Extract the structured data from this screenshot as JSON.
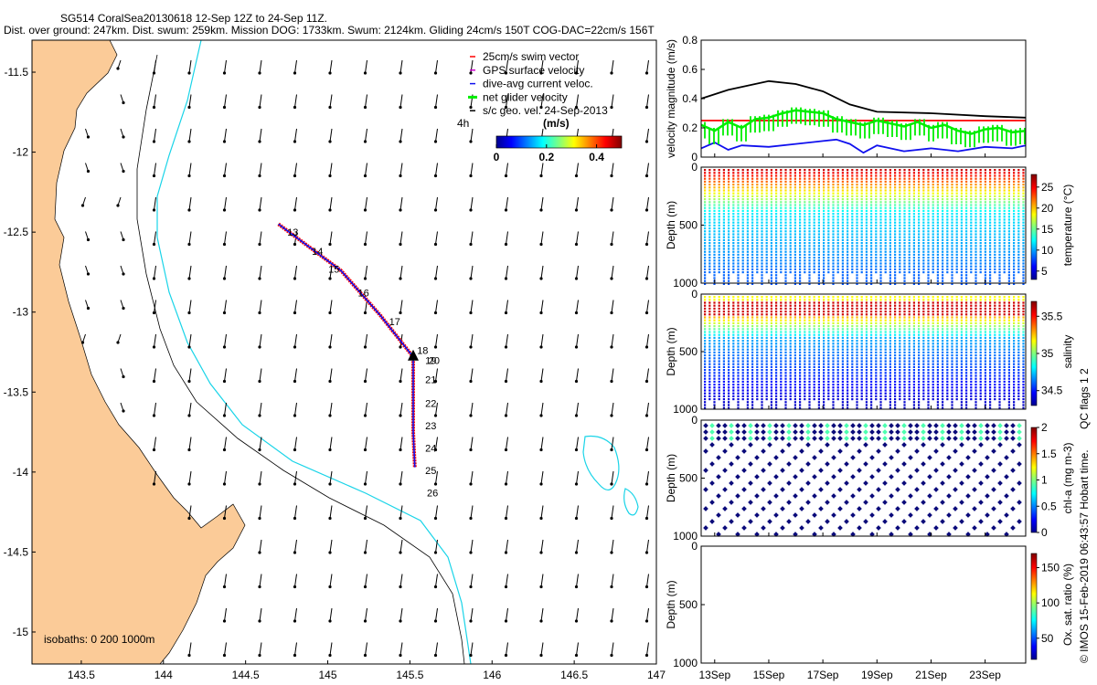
{
  "header": {
    "title_line1": "SG514 CoralSea20130618 12-Sep 12Z to 24-Sep 11Z.",
    "title_line2": "Dist. over ground: 247km. Dist. swum: 259km. Mission DOG: 1733km. Swum: 2124km. Gliding 24cm/s 150T COG-DAC=22cm/s 156T"
  },
  "colors": {
    "land": "#fbcb98",
    "track": "#1010ee",
    "swim": "#ff0000",
    "gps": "#cc00cc",
    "net": "#00ee00",
    "cyan": "#19d4e8",
    "dots": "#0a0a7a"
  },
  "map": {
    "x_ticks": [
      "143.5",
      "144",
      "144.5",
      "145",
      "145.5",
      "146",
      "146.5",
      "147"
    ],
    "y_ticks": [
      "-11.5",
      "-12",
      "-12.5",
      "-13",
      "-13.5",
      "-14",
      "-14.5",
      "-15"
    ],
    "xlim": [
      143.2,
      147.0
    ],
    "ylim": [
      -15.2,
      -11.3
    ],
    "legend": {
      "items": [
        "25cm/s swim vector",
        "GPS surface velocity",
        "dive-avg current veloc.",
        "net glider velocity",
        "s/c geo. vel. 24-Sep-2013"
      ],
      "item_colors": [
        "#ff0000",
        "#cc00cc",
        "#1010ee",
        "#00ee00",
        "#000000"
      ],
      "time_label": "4h"
    },
    "colorbar": {
      "title": "(m/s)",
      "ticks": [
        "0",
        "0.2",
        "0.4"
      ],
      "range": [
        0,
        0.5
      ]
    },
    "isobaths_label": "isobaths: 0   200  1000m",
    "track": [
      [
        144.7,
        -12.45
      ],
      [
        145.08,
        -12.74
      ],
      [
        145.32,
        -13.02
      ],
      [
        145.52,
        -13.28
      ],
      [
        145.52,
        -13.5
      ],
      [
        145.52,
        -13.75
      ],
      [
        145.53,
        -13.97
      ]
    ],
    "day_labels": [
      {
        "text": "13",
        "lon": 144.72,
        "lat": -12.5
      },
      {
        "text": "14",
        "lon": 144.87,
        "lat": -12.62
      },
      {
        "text": "15",
        "lon": 144.97,
        "lat": -12.73
      },
      {
        "text": "16",
        "lon": 145.15,
        "lat": -12.88
      },
      {
        "text": "17",
        "lon": 145.34,
        "lat": -13.06
      },
      {
        "text": "18",
        "lon": 145.51,
        "lat": -13.24
      },
      {
        "text": "19",
        "lon": 145.56,
        "lat": -13.3
      },
      {
        "text": "20",
        "lon": 145.58,
        "lat": -13.3
      },
      {
        "text": "21",
        "lon": 145.56,
        "lat": -13.42
      },
      {
        "text": "22",
        "lon": 145.56,
        "lat": -13.57
      },
      {
        "text": "23",
        "lon": 145.56,
        "lat": -13.71
      },
      {
        "text": "24",
        "lon": 145.56,
        "lat": -13.85
      },
      {
        "text": "25",
        "lon": 145.56,
        "lat": -13.99
      },
      {
        "text": "26",
        "lon": 145.57,
        "lat": -14.13
      }
    ]
  },
  "chart_data": [
    {
      "type": "line",
      "ylabel": "velocity magnitude (m/s)",
      "ylim": [
        0,
        0.8
      ],
      "y_ticks": [
        "0",
        "0.2",
        "0.4",
        "0.6",
        "0.8"
      ],
      "xlim": [
        12.5,
        24.5
      ],
      "series": [
        {
          "name": "s/c geo. vel.",
          "color": "#000000",
          "x": [
            12.5,
            13.5,
            15,
            16,
            17,
            18,
            19,
            21,
            23,
            24.5
          ],
          "y": [
            0.4,
            0.46,
            0.52,
            0.5,
            0.45,
            0.36,
            0.31,
            0.3,
            0.28,
            0.27
          ]
        },
        {
          "name": "25cm/s swim vector",
          "color": "#ff0000",
          "x": [
            12.5,
            24.5
          ],
          "y": [
            0.25,
            0.25
          ]
        },
        {
          "name": "net glider velocity",
          "color": "#00ee00",
          "x": [
            12.5,
            13,
            13.5,
            14,
            14.5,
            15,
            15.5,
            16,
            16.5,
            17,
            17.5,
            18,
            18.5,
            19,
            19.5,
            20,
            20.5,
            21,
            21.5,
            22,
            22.5,
            23,
            23.5,
            24,
            24.5
          ],
          "y": [
            0.22,
            0.18,
            0.24,
            0.2,
            0.26,
            0.27,
            0.3,
            0.32,
            0.31,
            0.3,
            0.26,
            0.24,
            0.22,
            0.25,
            0.23,
            0.21,
            0.24,
            0.2,
            0.22,
            0.18,
            0.16,
            0.19,
            0.2,
            0.17,
            0.18
          ]
        },
        {
          "name": "dive-avg current veloc.",
          "color": "#1010ee",
          "x": [
            12.5,
            13,
            13.5,
            14,
            15,
            16,
            17,
            17.5,
            18,
            18.5,
            19,
            20,
            21,
            22,
            23,
            24,
            24.5
          ],
          "y": [
            0.06,
            0.1,
            0.05,
            0.08,
            0.07,
            0.09,
            0.11,
            0.12,
            0.09,
            0.03,
            0.08,
            0.04,
            0.06,
            0.04,
            0.07,
            0.06,
            0.08
          ]
        }
      ]
    },
    {
      "type": "heatmap",
      "ylabel": "Depth (m)",
      "clabel": "temperature (°C)",
      "y_ticks": [
        "0",
        "500",
        "1000"
      ],
      "c_ticks": [
        "5",
        "10",
        "15",
        "20",
        "25"
      ],
      "crange": [
        3,
        28
      ]
    },
    {
      "type": "heatmap",
      "ylabel": "Depth (m)",
      "clabel": "salinity",
      "y_ticks": [
        "0",
        "500",
        "1000"
      ],
      "c_ticks": [
        "34.5",
        "35",
        "35.5"
      ],
      "crange": [
        34.3,
        35.7
      ]
    },
    {
      "type": "scatter",
      "ylabel": "Depth (m)",
      "clabel": "chl-a (mg m-3)",
      "y_ticks": [
        "0",
        "500",
        "1000"
      ],
      "c_ticks": [
        "0",
        "0.5",
        "1",
        "1.5",
        "2"
      ],
      "crange": [
        0,
        2
      ]
    },
    {
      "type": "scatter",
      "ylabel": "Depth (m)",
      "clabel": "Ox. sat. ratio (%)",
      "y_ticks": [
        "0",
        "500",
        "1000"
      ],
      "c_ticks": [
        "50",
        "100",
        "150"
      ],
      "crange": [
        20,
        170
      ],
      "x_ticks": [
        "13Sep",
        "15Sep",
        "17Sep",
        "19Sep",
        "21Sep",
        "23Sep"
      ]
    }
  ],
  "footer": {
    "qc_label": "QC flags 1  2",
    "imos_label": "© IMOS 15-Feb-2019 06:43:57 Hobart time."
  }
}
